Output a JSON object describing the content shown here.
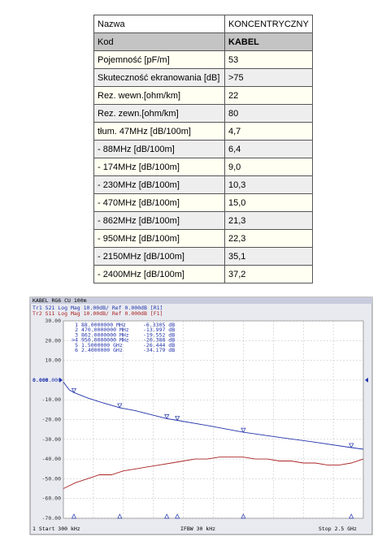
{
  "table": {
    "rows": [
      [
        "Nazwa",
        "KONCENTRYCZNY"
      ],
      [
        "Kod",
        "KABEL"
      ],
      [
        "Pojemność [pF/m]",
        "53"
      ],
      [
        "Skuteczność ekranowania [dB]",
        ">75"
      ],
      [
        "Rez. wewn.[ohm/km]",
        "22"
      ],
      [
        "Rez. zewn.[ohm/km]",
        "80"
      ],
      [
        "tłum. 47MHz [dB/100m]",
        "4,7"
      ],
      [
        "- 88MHz [dB/100m]",
        "6,4"
      ],
      [
        "- 174MHz [dB/100m]",
        "9,0"
      ],
      [
        "- 230MHz [dB/100m]",
        "10,3"
      ],
      [
        "- 470MHz [dB/100m]",
        "15,0"
      ],
      [
        "- 862MHz [dB/100m]",
        "21,3"
      ],
      [
        "- 950MHz [dB/100m]",
        "22,3"
      ],
      [
        "- 2150MHz [dB/100m]",
        "35,1"
      ],
      [
        "- 2400MHz [dB/100m]",
        "37,2"
      ]
    ]
  },
  "analyzer": {
    "title": "KABEL RG6 CU 100m",
    "traces": [
      "Tr1 S21 Log Mag 10.00dB/ Ref 0.000dB [R1]",
      "Tr2 S11 Log Mag 10.00dB/ Ref 0.000dB [F1]"
    ],
    "reference": "0.000",
    "ylim": [
      -70,
      30
    ],
    "xlim": [
      0.3,
      2500
    ],
    "yticks": [
      {
        "value": 30,
        "label": "30.00"
      },
      {
        "value": 20,
        "label": "20.00"
      },
      {
        "value": 10,
        "label": "10.00"
      },
      {
        "value": 0,
        "label": "0.000"
      },
      {
        "value": -10,
        "label": "-10.00"
      },
      {
        "value": -20,
        "label": "-20.00"
      },
      {
        "value": -30,
        "label": "-30.00"
      },
      {
        "value": -40,
        "label": "-40.00"
      },
      {
        "value": -50,
        "label": "-50.00"
      },
      {
        "value": -60,
        "label": "-60.00"
      },
      {
        "value": -70,
        "label": "-70.00"
      }
    ],
    "markers": [
      {
        "label": "1",
        "x": 88,
        "x_label": "88.0000000 MHz",
        "value": -6.3305,
        "value_label": "-6.3305 dB"
      },
      {
        "label": "2",
        "x": 470,
        "x_label": "470.0000000 MHz",
        "value": -13.997,
        "value_label": "-13.997 dB"
      },
      {
        "label": "3",
        "x": 862,
        "x_label": "862.0000000 MHz",
        "value": -19.552,
        "value_label": "-19.552 dB"
      },
      {
        "label": ">4",
        "x": 950,
        "x_label": "950.0000000 MHz",
        "value": -20.388,
        "value_label": "-20.388 dB"
      },
      {
        "label": "5",
        "x": 1500,
        "x_label": "1.5000000 GHz",
        "value": -26.444,
        "value_label": "-26.444 dB"
      },
      {
        "label": "6",
        "x": 2400,
        "x_label": "2.4000000 GHz",
        "value": -34.179,
        "value_label": "-34.179 dB"
      }
    ],
    "series": [
      {
        "color": "#2233aa",
        "x": [
          0.3,
          50,
          88,
          200,
          300,
          470,
          600,
          862,
          950,
          1200,
          1500,
          1800,
          2100,
          2400,
          2500
        ],
        "values": [
          -1,
          -5,
          -6.3,
          -9,
          -11,
          -14,
          -15.5,
          -19.5,
          -20.4,
          -23,
          -26.4,
          -29,
          -31.5,
          -34.2,
          -35
        ]
      },
      {
        "color": "#aa2222",
        "x": [
          0.3,
          100,
          200,
          300,
          400,
          500,
          600,
          700,
          800,
          900,
          1000,
          1100,
          1200,
          1300,
          1400,
          1500,
          1600,
          1700,
          1800,
          1900,
          2000,
          2100,
          2200,
          2300,
          2400,
          2500
        ],
        "values": [
          -55,
          -52,
          -50,
          -48,
          -48,
          -46,
          -45,
          -44,
          -43,
          -42,
          -41,
          -40,
          -40,
          -39,
          -39,
          -39,
          -40,
          -40,
          -41,
          -41,
          -42,
          -42,
          -43,
          -43,
          -42,
          -40
        ]
      }
    ],
    "footer": [
      "1 Start 300 kHz",
      "IFBW 30 kHz",
      "Stop 2.5 GHz"
    ]
  }
}
